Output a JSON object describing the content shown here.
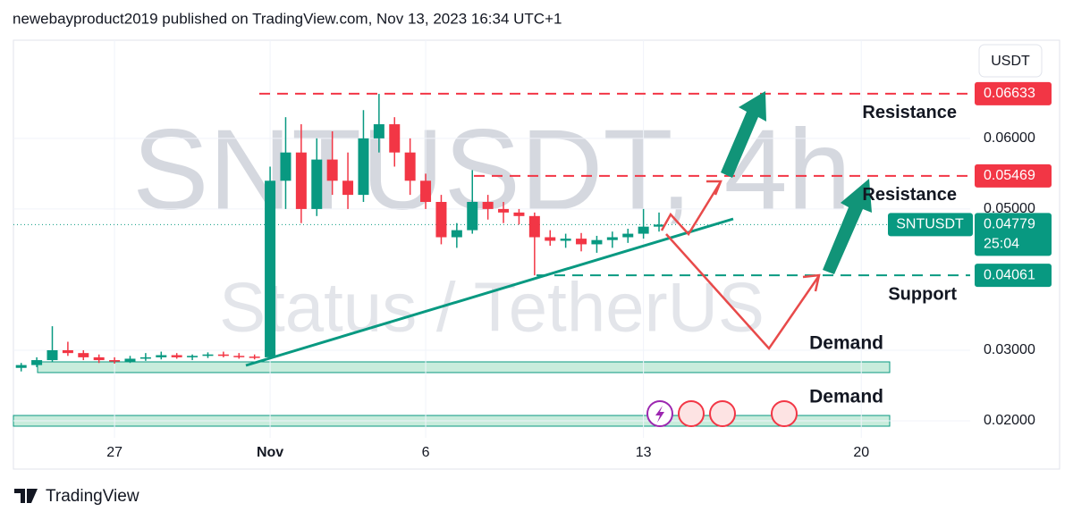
{
  "header": "newebayproduct2019 published on TradingView.com, Nov 13, 2023 16:34 UTC+1",
  "brand": "TradingView",
  "chart_data": {
    "type": "candlestick",
    "watermark": "SNTUSDT, 4h",
    "watermark_sub": "Status / TetherUS",
    "currency": "USDT",
    "x": [
      -3,
      -2.5,
      -2,
      -1.5,
      -1,
      -0.5,
      0,
      0.5,
      1,
      1.5,
      2,
      2.5,
      3,
      3.5,
      4,
      4.5,
      5,
      5.5,
      6,
      6.5,
      7,
      7.5,
      8,
      8.5,
      9,
      9.5,
      10,
      10.5,
      11,
      11.5,
      12,
      12.5,
      13,
      13.5,
      14,
      14.5,
      15,
      15.5,
      16,
      16.5,
      17,
      17.5
    ],
    "open": [
      0.0275,
      0.0279,
      0.0286,
      0.03,
      0.0296,
      0.029,
      0.0286,
      0.0284,
      0.0288,
      0.029,
      0.0293,
      0.029,
      0.0292,
      0.0294,
      0.0292,
      0.0291,
      0.029,
      0.054,
      0.058,
      0.05,
      0.057,
      0.054,
      0.052,
      0.06,
      0.062,
      0.058,
      0.054,
      0.051,
      0.046,
      0.047,
      0.051,
      0.05,
      0.0495,
      0.049,
      0.046,
      0.0455,
      0.0458,
      0.045,
      0.0456,
      0.046,
      0.0465,
      0.0475
    ],
    "high": [
      0.0282,
      0.029,
      0.0334,
      0.0312,
      0.03,
      0.0294,
      0.029,
      0.0292,
      0.0296,
      0.0298,
      0.0296,
      0.0294,
      0.0297,
      0.0298,
      0.0296,
      0.0294,
      0.056,
      0.063,
      0.062,
      0.06,
      0.061,
      0.058,
      0.064,
      0.0663,
      0.063,
      0.06,
      0.055,
      0.052,
      0.048,
      0.0555,
      0.052,
      0.051,
      0.05,
      0.0495,
      0.047,
      0.0465,
      0.0466,
      0.0462,
      0.0468,
      0.0472,
      0.05,
      0.0495
    ],
    "low": [
      0.027,
      0.0276,
      0.0284,
      0.0292,
      0.0286,
      0.0282,
      0.0281,
      0.0282,
      0.0285,
      0.0287,
      0.0288,
      0.0286,
      0.0289,
      0.029,
      0.0288,
      0.0287,
      0.0288,
      0.05,
      0.048,
      0.049,
      0.052,
      0.05,
      0.051,
      0.058,
      0.056,
      0.052,
      0.05,
      0.045,
      0.0445,
      0.0465,
      0.0485,
      0.048,
      0.0478,
      0.0406,
      0.0448,
      0.0445,
      0.044,
      0.0438,
      0.0445,
      0.0452,
      0.0458,
      0.0468
    ],
    "close": [
      0.0279,
      0.0286,
      0.03,
      0.0296,
      0.029,
      0.0286,
      0.0284,
      0.0288,
      0.029,
      0.0293,
      0.029,
      0.0292,
      0.0294,
      0.0292,
      0.0291,
      0.029,
      0.054,
      0.058,
      0.05,
      0.057,
      0.054,
      0.052,
      0.06,
      0.062,
      0.058,
      0.054,
      0.051,
      0.046,
      0.047,
      0.051,
      0.05,
      0.0495,
      0.049,
      0.046,
      0.0455,
      0.0458,
      0.045,
      0.0456,
      0.046,
      0.0465,
      0.0475,
      0.04779
    ],
    "up_color": "#089981",
    "down_color": "#f23645",
    "xlim": [
      -3.25,
      27.5
    ],
    "xticks": [
      {
        "value": 0,
        "label": "27"
      },
      {
        "value": 5,
        "label": "Nov"
      },
      {
        "value": 10,
        "label": "6"
      },
      {
        "value": 17,
        "label": "13"
      },
      {
        "value": 24,
        "label": "20"
      }
    ],
    "ylim": [
      0.0176,
      0.0739
    ],
    "yticks": [
      {
        "value": 0.02,
        "label": "0.02000"
      },
      {
        "value": 0.03,
        "label": "0.03000"
      },
      {
        "value": 0.05,
        "label": "0.05000"
      },
      {
        "value": 0.06,
        "label": "0.06000"
      }
    ],
    "last_price": {
      "symbol": "SNTUSDT",
      "value": 0.04779,
      "countdown": "25:04",
      "color": "#089981"
    },
    "levels": [
      {
        "value": 0.06633,
        "name": "Resistance",
        "color": "#f23645"
      },
      {
        "value": 0.05469,
        "name": "Resistance",
        "color": "#f23645"
      },
      {
        "value": 0.04061,
        "name": "Support",
        "color": "#089981"
      }
    ],
    "zones": [
      "Demand",
      "Demand"
    ]
  }
}
